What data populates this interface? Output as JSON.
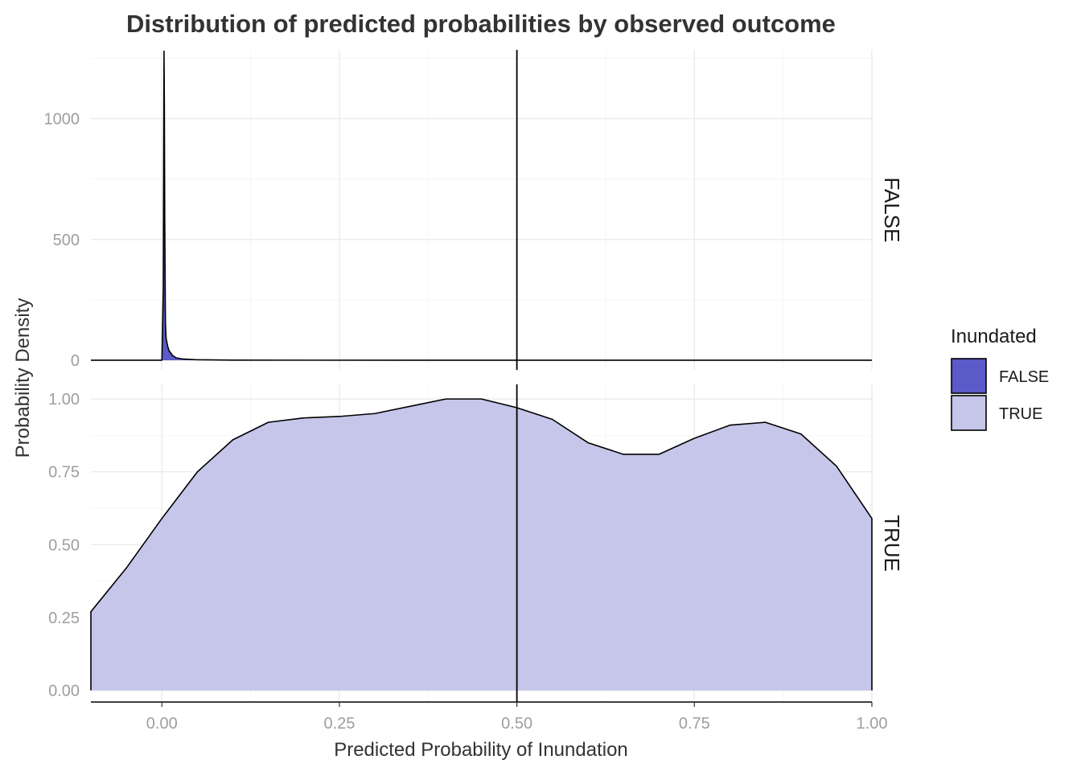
{
  "chart_data": {
    "type": "area",
    "title": "Distribution of predicted probabilities by observed outcome",
    "xlabel": "Predicted Probability of Inundation",
    "ylabel": "Probability Density",
    "xlim": [
      -0.1,
      1.0
    ],
    "x_ticks": [
      0.0,
      0.25,
      0.5,
      0.75,
      1.0
    ],
    "x_tick_labels": [
      "0.00",
      "0.25",
      "0.50",
      "0.75",
      "1.00"
    ],
    "vline_x": 0.5,
    "grid": true,
    "legend": {
      "title": "Inundated",
      "position": "right",
      "entries": [
        {
          "label": "FALSE",
          "color": "#5a5ac8"
        },
        {
          "label": "TRUE",
          "color": "#c6c6ea"
        }
      ]
    },
    "panels": [
      {
        "facet": "FALSE",
        "fill": "#5a5ac8",
        "ylim": [
          -40,
          1285
        ],
        "y_ticks": [
          0,
          500,
          1000
        ],
        "y_tick_labels": [
          "0",
          "500",
          "1000"
        ],
        "x": [
          -0.1,
          0.0,
          0.002,
          0.0025,
          0.003,
          0.0035,
          0.004,
          0.005,
          0.006,
          0.008,
          0.01,
          0.015,
          0.02,
          0.03,
          0.05,
          0.1,
          0.5,
          1.0
        ],
        "y": [
          0,
          0,
          300,
          800,
          1280,
          1050,
          600,
          150,
          90,
          60,
          40,
          20,
          10,
          5,
          2,
          0.5,
          0,
          0
        ]
      },
      {
        "facet": "TRUE",
        "fill": "#c6c6ea",
        "ylim": [
          -0.04,
          1.05
        ],
        "y_ticks": [
          0.0,
          0.25,
          0.5,
          0.75,
          1.0
        ],
        "y_tick_labels": [
          "0.00",
          "0.25",
          "0.50",
          "0.75",
          "1.00"
        ],
        "x": [
          -0.1,
          -0.05,
          0.0,
          0.05,
          0.1,
          0.15,
          0.2,
          0.25,
          0.3,
          0.35,
          0.4,
          0.45,
          0.5,
          0.55,
          0.6,
          0.65,
          0.7,
          0.75,
          0.8,
          0.85,
          0.9,
          0.95,
          1.0
        ],
        "y": [
          0.27,
          0.42,
          0.59,
          0.75,
          0.86,
          0.92,
          0.935,
          0.94,
          0.95,
          0.975,
          1.0,
          1.0,
          0.97,
          0.93,
          0.85,
          0.81,
          0.81,
          0.865,
          0.91,
          0.92,
          0.88,
          0.77,
          0.59
        ]
      }
    ]
  }
}
